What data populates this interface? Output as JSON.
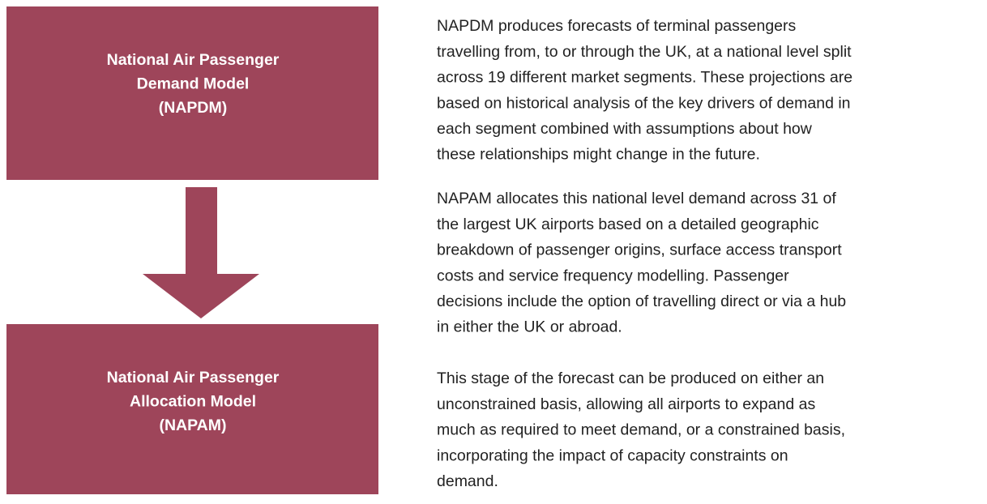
{
  "nodes": [
    {
      "lines": [
        "National Air Passenger",
        "Demand Model",
        "(NAPDM)"
      ]
    },
    {
      "lines": [
        "National Air Passenger",
        "Allocation Model",
        "(NAPAM)"
      ]
    }
  ],
  "paragraphs": [
    {
      "lines": [
        "NAPDM produces forecasts of terminal passengers",
        "travelling from, to or through the UK, at a national level split",
        "across 19 different market segments. These projections are",
        "based on historical analysis of the key drivers of demand in",
        "each segment combined with assumptions about how",
        "these relationships might change in the future."
      ]
    },
    {
      "lines": [
        "NAPAM allocates this national level demand across 31 of",
        "the largest UK airports based on a detailed geographic",
        "breakdown of passenger origins, surface access transport",
        "costs and service frequency modelling. Passenger",
        "decisions include the option of travelling direct or via a hub",
        "in either the UK or abroad."
      ]
    },
    {
      "lines": [
        "This stage of the forecast can be produced on either an",
        "unconstrained basis, allowing all airports to expand as",
        "much as required to meet demand, or a constrained basis,",
        "incorporating the impact of capacity constraints on",
        "demand."
      ]
    }
  ]
}
